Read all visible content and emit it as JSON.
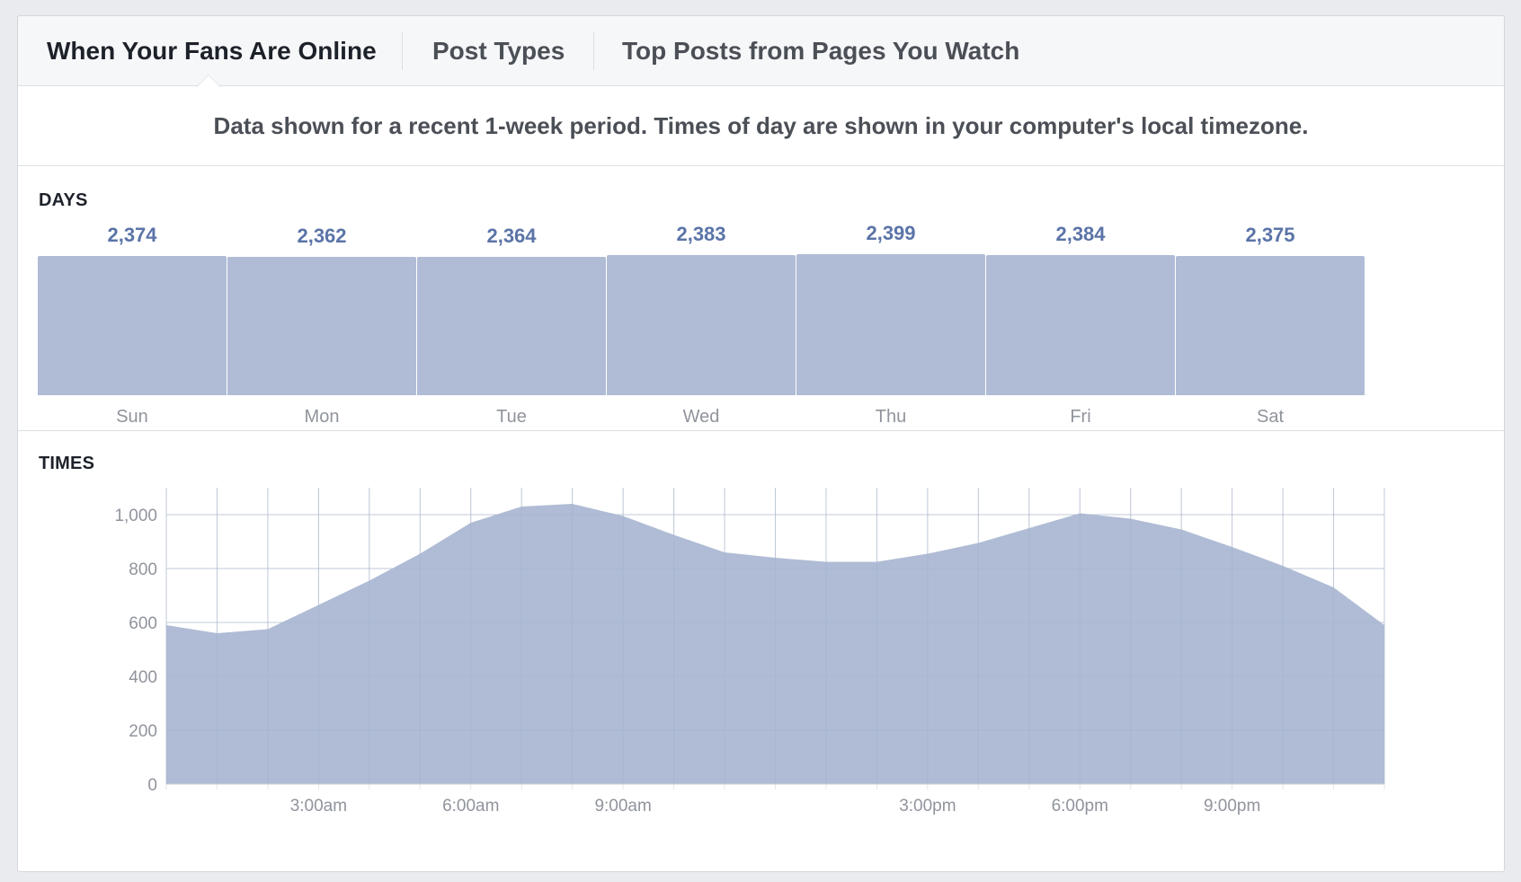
{
  "tabs": [
    {
      "label": "When Your Fans Are Online",
      "active": true
    },
    {
      "label": "Post Types",
      "active": false
    },
    {
      "label": "Top Posts from Pages You Watch",
      "active": false
    }
  ],
  "info_text": "Data shown for a recent 1-week period. Times of day are shown in your computer's local timezone.",
  "days_section": {
    "title": "DAYS"
  },
  "times_section": {
    "title": "TIMES"
  },
  "colors": {
    "bar": "#b0bcd5",
    "value_text": "#5b74a8",
    "area": "#b0bcd5",
    "grid": "#e5e6e9",
    "axis_text": "#90949c"
  },
  "chart_data": [
    {
      "type": "bar",
      "title": "DAYS",
      "categories": [
        "Sun",
        "Mon",
        "Tue",
        "Wed",
        "Thu",
        "Fri",
        "Sat"
      ],
      "values": [
        2374,
        2362,
        2364,
        2383,
        2399,
        2384,
        2375
      ],
      "value_labels": [
        "2,374",
        "2,362",
        "2,364",
        "2,383",
        "2,399",
        "2,384",
        "2,375"
      ]
    },
    {
      "type": "area",
      "title": "TIMES",
      "x_hours": [
        0,
        1,
        2,
        3,
        4,
        5,
        6,
        7,
        8,
        9,
        10,
        11,
        12,
        13,
        14,
        15,
        16,
        17,
        18,
        19,
        20,
        21,
        22,
        23,
        24
      ],
      "values": [
        590,
        560,
        575,
        665,
        755,
        855,
        970,
        1030,
        1040,
        995,
        925,
        860,
        840,
        825,
        825,
        855,
        895,
        950,
        1005,
        985,
        945,
        880,
        810,
        730,
        590
      ],
      "x_ticks": [
        {
          "hour": 3,
          "label": "3:00am"
        },
        {
          "hour": 6,
          "label": "6:00am"
        },
        {
          "hour": 9,
          "label": "9:00am"
        },
        {
          "hour": 15,
          "label": "3:00pm"
        },
        {
          "hour": 18,
          "label": "6:00pm"
        },
        {
          "hour": 21,
          "label": "9:00pm"
        }
      ],
      "y_ticks": [
        {
          "value": 0,
          "label": "0"
        },
        {
          "value": 200,
          "label": "200"
        },
        {
          "value": 400,
          "label": "400"
        },
        {
          "value": 600,
          "label": "600"
        },
        {
          "value": 800,
          "label": "800"
        },
        {
          "value": 1000,
          "label": "1,000"
        }
      ],
      "ylim": [
        0,
        1100
      ],
      "xlim": [
        0,
        24
      ],
      "grid": true
    }
  ]
}
